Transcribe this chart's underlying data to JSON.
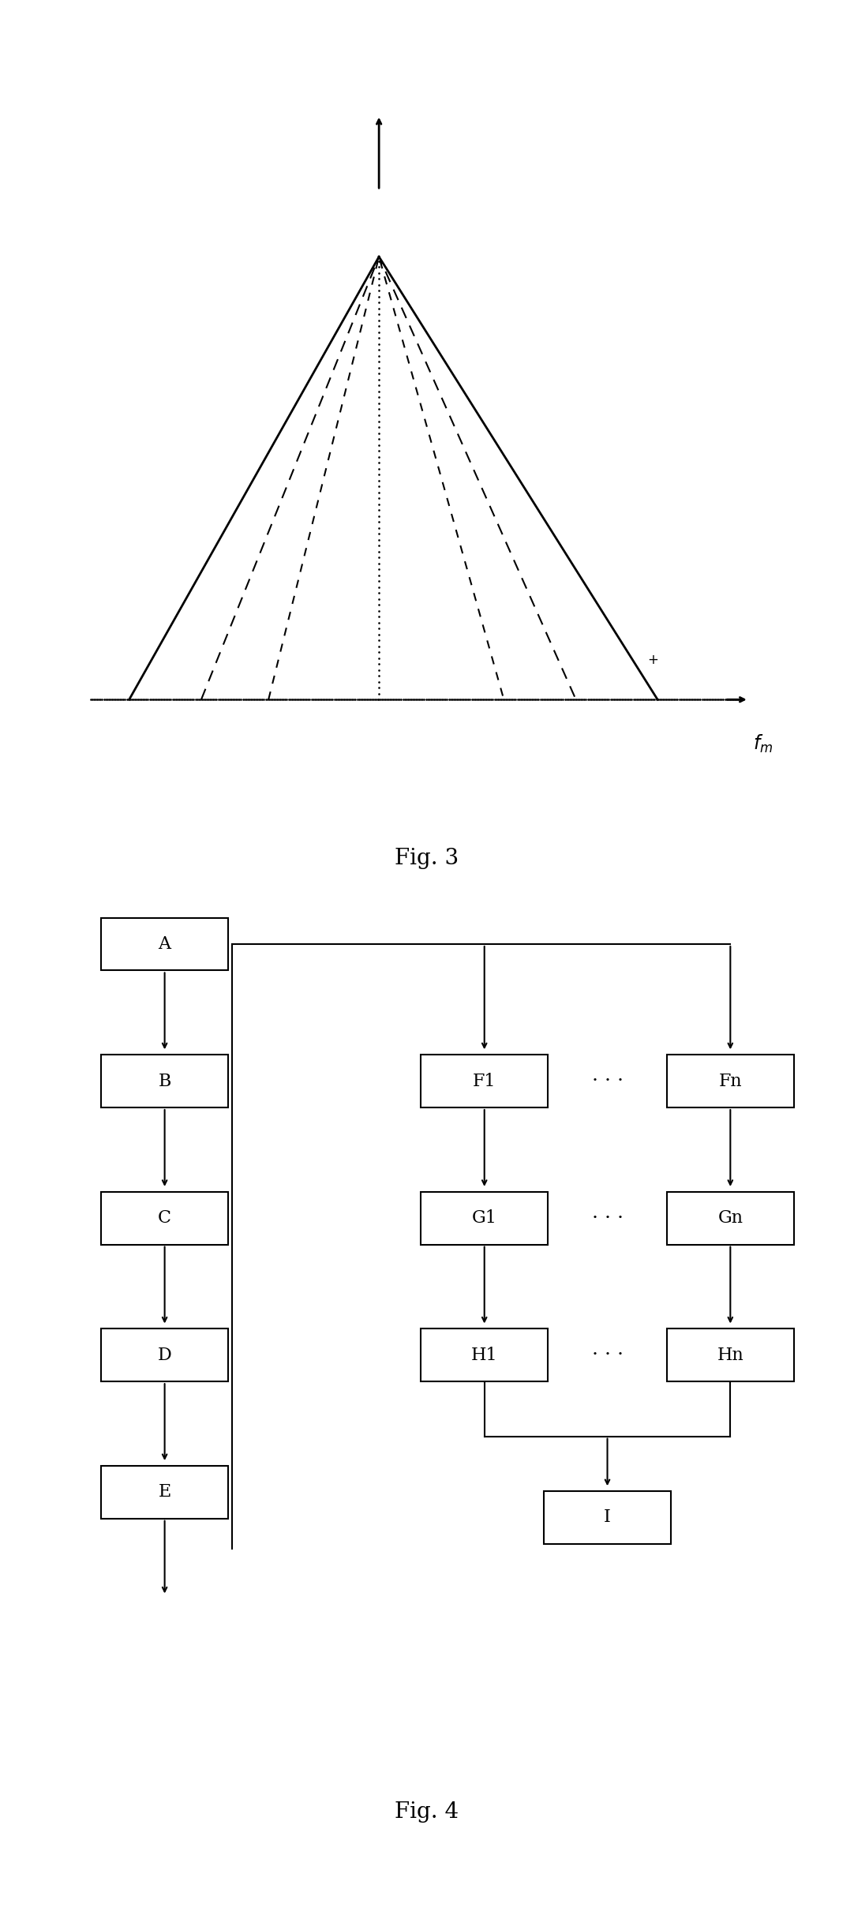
{
  "fig3_title": "Fig. 3",
  "fig4_title": "Fig. 4",
  "boxes_left": [
    "A",
    "B",
    "C",
    "D",
    "E"
  ],
  "boxes_right_col1": [
    "F1",
    "G1",
    "H1"
  ],
  "boxes_right_col2": [
    "Fn",
    "Gn",
    "Hn"
  ],
  "box_I": "I",
  "bg_color": "#ffffff",
  "line_color": "#000000"
}
